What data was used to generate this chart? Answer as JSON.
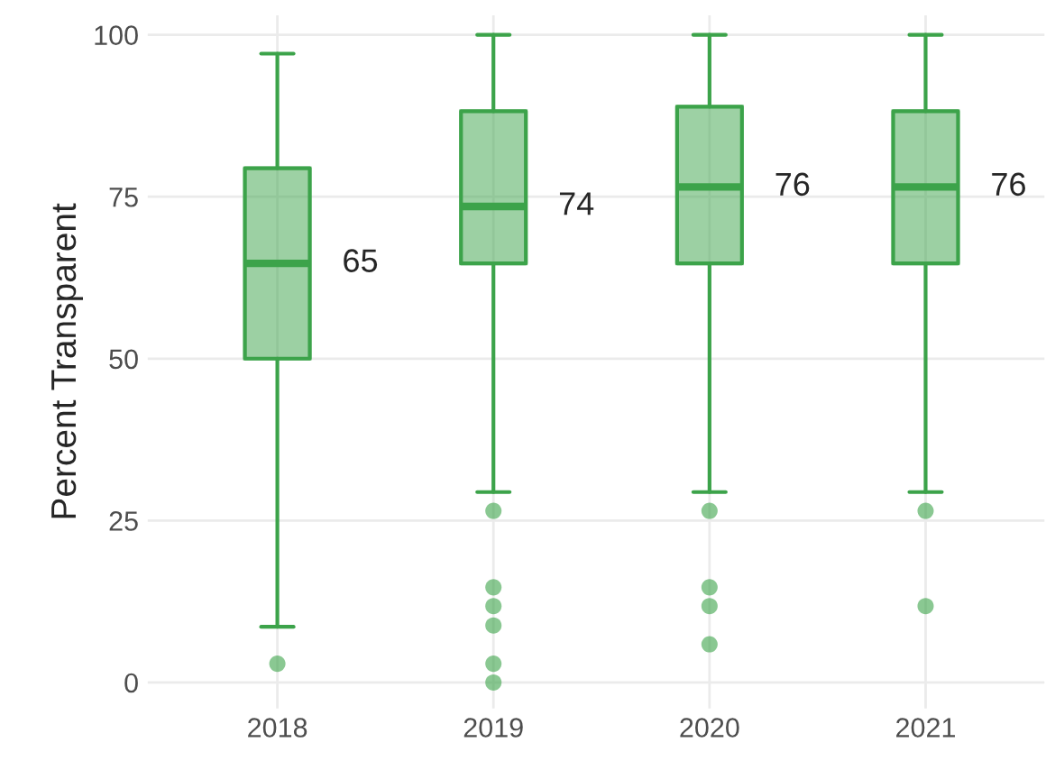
{
  "chart_data": {
    "type": "box",
    "ylabel": "Percent Transparent",
    "categories": [
      "2018",
      "2019",
      "2020",
      "2021"
    ],
    "boxes": [
      {
        "low": 8.6,
        "q1": 50,
        "median": 64.7,
        "q3": 79.4,
        "high": 97.1,
        "outliers": [
          2.9
        ]
      },
      {
        "low": 29.4,
        "q1": 64.7,
        "median": 73.5,
        "q3": 88.2,
        "high": 100,
        "outliers": [
          26.5,
          14.7,
          11.8,
          8.8,
          2.9,
          0
        ]
      },
      {
        "low": 29.4,
        "q1": 64.7,
        "median": 76.5,
        "q3": 88.9,
        "high": 100,
        "outliers": [
          26.5,
          14.7,
          11.8,
          5.9
        ]
      },
      {
        "low": 29.4,
        "q1": 64.7,
        "median": 76.5,
        "q3": 88.2,
        "high": 100,
        "outliers": [
          26.5,
          11.8
        ]
      }
    ],
    "color": "#3ca34a",
    "annotations": [
      {
        "text": "65",
        "x": "2018",
        "y": 64.7
      },
      {
        "text": "74",
        "x": "2019",
        "y": 73.5
      },
      {
        "text": "76",
        "x": "2020",
        "y": 76.5
      },
      {
        "text": "76",
        "x": "2021",
        "y": 76.5
      }
    ],
    "ylim": [
      -4,
      103
    ],
    "yticks": [
      0,
      25,
      50,
      75,
      100
    ],
    "grid": true
  }
}
